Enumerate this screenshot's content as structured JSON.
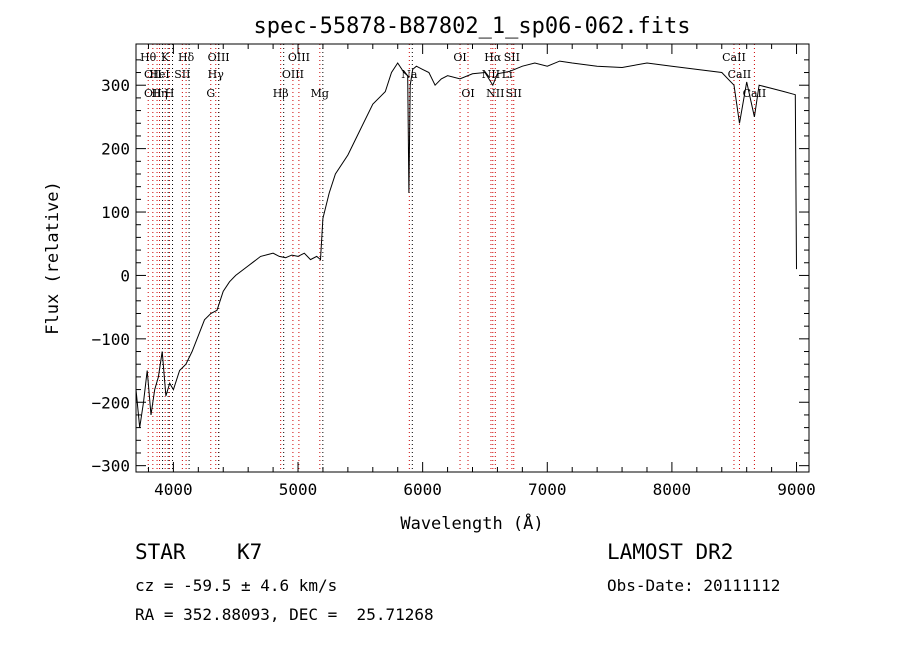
{
  "chart_data": {
    "type": "line",
    "title": "spec-55878-B87802_1_sp06-062.fits",
    "xlabel": "Wavelength (Å)",
    "ylabel": "Flux (relative)",
    "xlim": [
      3700,
      9100
    ],
    "ylim": [
      -310,
      365
    ],
    "xticks": [
      4000,
      5000,
      6000,
      7000,
      8000,
      9000
    ],
    "yticks": [
      -300,
      -200,
      -100,
      0,
      100,
      200,
      300
    ],
    "grid": false,
    "series": [
      {
        "x": [
          3700,
          3730,
          3760,
          3790,
          3820,
          3850,
          3880,
          3910,
          3940,
          3970,
          4000,
          4050,
          4100,
          4150,
          4200,
          4250,
          4300,
          4350,
          4400,
          4450,
          4500,
          4600,
          4700,
          4800,
          4850,
          4900,
          4950,
          5000,
          5050,
          5100,
          5150,
          5180,
          5200,
          5250,
          5300,
          5400,
          5500,
          5600,
          5700,
          5750,
          5800,
          5850,
          5880,
          5890,
          5900,
          5920,
          5950,
          6000,
          6050,
          6100,
          6150,
          6200,
          6300,
          6400,
          6500,
          6563,
          6600,
          6700,
          6800,
          6900,
          7000,
          7100,
          7200,
          7400,
          7600,
          7800,
          8000,
          8200,
          8400,
          8498,
          8542,
          8600,
          8662,
          8700,
          8800,
          8900,
          8990,
          9000
        ],
        "y": [
          -180,
          -240,
          -200,
          -150,
          -220,
          -180,
          -160,
          -120,
          -190,
          -170,
          -180,
          -150,
          -140,
          -120,
          -95,
          -70,
          -60,
          -55,
          -25,
          -10,
          0,
          15,
          30,
          35,
          30,
          28,
          32,
          30,
          35,
          25,
          30,
          25,
          90,
          130,
          160,
          190,
          230,
          270,
          290,
          320,
          335,
          320,
          315,
          130,
          300,
          325,
          330,
          325,
          320,
          300,
          310,
          315,
          310,
          318,
          320,
          300,
          318,
          322,
          330,
          335,
          330,
          338,
          335,
          330,
          328,
          335,
          330,
          325,
          320,
          300,
          240,
          305,
          250,
          300,
          295,
          290,
          285,
          10
        ]
      }
    ],
    "lines_red": [
      {
        "x": 3798,
        "labels": [
          {
            "text": "Hθ",
            "row": 1
          }
        ]
      },
      {
        "x": 3835,
        "labels": [
          {
            "text": "OII",
            "row": 2
          },
          {
            "text": "OII",
            "row": 3
          }
        ]
      },
      {
        "x": 3869,
        "labels": [
          {
            "text": "",
            "row": 2
          }
        ]
      },
      {
        "x": 3889,
        "labels": [
          {
            "text": "Hη",
            "row": 3
          },
          {
            "text": "HeI",
            "row": 2
          }
        ]
      },
      {
        "x": 3934,
        "labels": [
          {
            "text": "K",
            "row": 1
          }
        ]
      },
      {
        "x": 3969,
        "labels": [
          {
            "text": "H",
            "row": 3
          }
        ]
      },
      {
        "x": 4072,
        "labels": [
          {
            "text": "SII",
            "row": 2
          }
        ]
      },
      {
        "x": 4102,
        "labels": [
          {
            "text": "Hδ",
            "row": 1
          }
        ]
      },
      {
        "x": 4300,
        "labels": [
          {
            "text": "G",
            "row": 3
          }
        ]
      },
      {
        "x": 4340,
        "labels": [
          {
            "text": "Hγ",
            "row": 2
          }
        ]
      },
      {
        "x": 4363,
        "labels": [
          {
            "text": "OIII",
            "row": 1
          }
        ]
      },
      {
        "x": 4861,
        "labels": [
          {
            "text": "Hβ",
            "row": 3
          }
        ]
      },
      {
        "x": 4959,
        "labels": [
          {
            "text": "OIII",
            "row": 2
          }
        ]
      },
      {
        "x": 5007,
        "labels": [
          {
            "text": "OIII",
            "row": 1
          }
        ]
      },
      {
        "x": 5175,
        "labels": [
          {
            "text": "Mg",
            "row": 3
          }
        ]
      },
      {
        "x": 5893,
        "labels": [
          {
            "text": "Na",
            "row": 2
          }
        ]
      },
      {
        "x": 6300,
        "labels": [
          {
            "text": "OI",
            "row": 1
          }
        ]
      },
      {
        "x": 6364,
        "labels": [
          {
            "text": "OI",
            "row": 3
          }
        ]
      },
      {
        "x": 6548,
        "labels": [
          {
            "text": "NII",
            "row": 2
          }
        ]
      },
      {
        "x": 6563,
        "labels": [
          {
            "text": "Hα",
            "row": 1
          }
        ]
      },
      {
        "x": 6583,
        "labels": [
          {
            "text": "NII",
            "row": 3
          }
        ]
      },
      {
        "x": 6678,
        "labels": [
          {
            "text": "Li",
            "row": 2
          }
        ]
      },
      {
        "x": 6716,
        "labels": [
          {
            "text": "SII",
            "row": 1
          }
        ]
      },
      {
        "x": 6731,
        "labels": [
          {
            "text": "SII",
            "row": 3
          }
        ]
      },
      {
        "x": 8498,
        "labels": [
          {
            "text": "CaII",
            "row": 1
          }
        ]
      },
      {
        "x": 8542,
        "labels": [
          {
            "text": "CaII",
            "row": 2
          }
        ]
      },
      {
        "x": 8662,
        "labels": [
          {
            "text": "CaII",
            "row": 3
          }
        ]
      }
    ],
    "lines_black": [
      3889,
      3934,
      3969,
      4102,
      4340,
      4861,
      5175,
      5893
    ]
  },
  "info": {
    "obj_type": "STAR",
    "obj_class": "K7",
    "survey": "LAMOST DR2",
    "cz": "cz = -59.5 ± 4.6 km/s",
    "obs_date": "Obs-Date: 20111112",
    "radec": "RA = 352.88093, DEC =  25.71268"
  }
}
